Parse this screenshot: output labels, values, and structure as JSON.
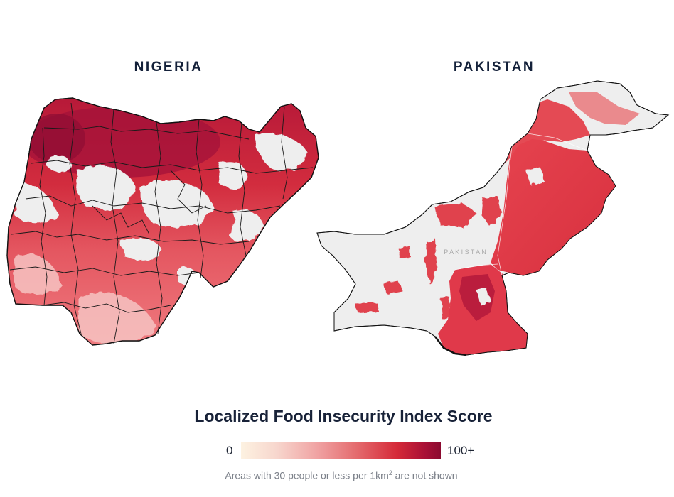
{
  "maps": {
    "nigeria": {
      "title": "NIGERIA"
    },
    "pakistan": {
      "title": "PAKISTAN",
      "internal_label": "P A K I S T A N"
    }
  },
  "legend": {
    "title": "Localized Food Insecurity Index Score",
    "min_label": "0",
    "max_label": "100+",
    "colors": [
      "#fdf2e1",
      "#f0a3a3",
      "#e46a6d",
      "#d52a38",
      "#a91036",
      "#8b0a30"
    ]
  },
  "footnote": {
    "prefix": "Areas with 30 people or less per 1km",
    "superscript": "2",
    "suffix": " are not shown"
  },
  "colors": {
    "no_data": "#eeeeee",
    "low": "#f4b5b2",
    "mid": "#e6565c",
    "high": "#cf2037",
    "very_high": "#a3123a",
    "border": "#111111"
  }
}
